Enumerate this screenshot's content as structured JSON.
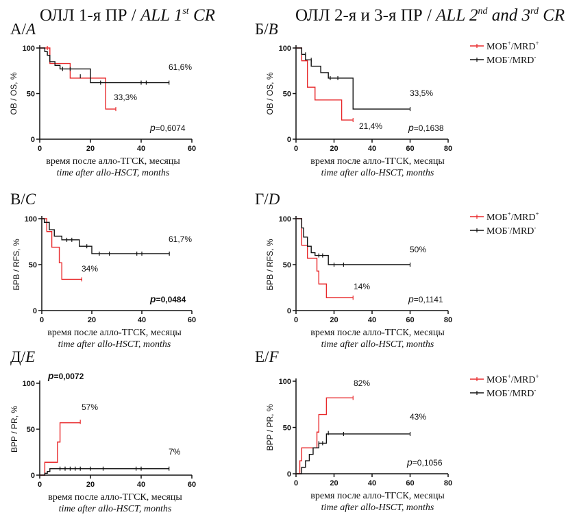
{
  "headings": {
    "left_main": "ОЛЛ 1-я ПР / ",
    "left_ital_pre": "ALL 1",
    "left_sup": "st",
    "left_ital_post": " CR",
    "right_main": "ОЛЛ 2-я и 3-я ПР / ",
    "right_ital_pre": "ALL 2",
    "right_sup1": "nd",
    "right_ital_mid": " and 3",
    "right_sup2": "rd",
    "right_ital_post": " CR"
  },
  "legend": {
    "red_label_pre": "МОБ",
    "red_label_sup": "+",
    "red_label_post": "/MRD",
    "red_label_sup2": "+",
    "black_label_pre": "МОБ",
    "black_label_sup": "-",
    "black_label_post": "/MRD",
    "black_label_sup2": "-"
  },
  "colors": {
    "red": "#e8292b",
    "black": "#111111"
  },
  "chart_data": [
    {
      "id": "A",
      "type": "line",
      "step": true,
      "panel_label_pre": "А/",
      "panel_label_it": "A",
      "ylabel": "ОВ / OS, %",
      "xlabel": "время после алло-ТГСК, месяцы",
      "xlabel2": "time after allo-HSCT, months",
      "xlim": [
        0,
        60
      ],
      "ylim": [
        0,
        100
      ],
      "xticks": [
        "0",
        "20",
        "40",
        "60"
      ],
      "yticks": [
        "0",
        "50",
        "100"
      ],
      "pvalue": "=0,6074",
      "p_bold": false,
      "annotations": [
        "61,6%",
        "33,3%"
      ],
      "series": [
        {
          "color": "red",
          "x": [
            0,
            3,
            4,
            12,
            26,
            30
          ],
          "y": [
            100,
            100,
            83,
            67,
            33,
            33
          ],
          "censor": [
            [
              3,
              100
            ],
            [
              30,
              33
            ]
          ]
        },
        {
          "color": "black",
          "x": [
            0,
            2,
            3,
            4,
            6,
            8,
            20,
            51
          ],
          "y": [
            100,
            96,
            92,
            85,
            81,
            77,
            62,
            62
          ],
          "censor": [
            [
              9,
              77
            ],
            [
              12,
              77
            ],
            [
              16,
              69
            ],
            [
              24,
              62
            ],
            [
              40,
              62
            ],
            [
              42,
              62
            ],
            [
              51,
              62
            ]
          ]
        }
      ]
    },
    {
      "id": "B",
      "type": "line",
      "step": true,
      "panel_label_pre": "Б/",
      "panel_label_it": "B",
      "ylabel": "ОВ / OS, %",
      "xlabel": "время после алло-ТГСК, месяцы",
      "xlabel2": "time after allo-HSCT, months",
      "xlim": [
        0,
        80
      ],
      "ylim": [
        0,
        100
      ],
      "xticks": [
        "0",
        "20",
        "40",
        "60",
        "80"
      ],
      "yticks": [
        "0",
        "50",
        "100"
      ],
      "pvalue": "=0,1638",
      "p_bold": false,
      "annotations": [
        "33,5%",
        "21,4%"
      ],
      "series": [
        {
          "color": "red",
          "x": [
            0,
            3,
            6,
            10,
            13,
            24,
            30
          ],
          "y": [
            100,
            86,
            57,
            43,
            43,
            21,
            21
          ],
          "censor": [
            [
              30,
              21
            ]
          ]
        },
        {
          "color": "black",
          "x": [
            0,
            3,
            5,
            8,
            13,
            17,
            30,
            60
          ],
          "y": [
            100,
            93,
            87,
            80,
            73,
            67,
            33,
            33
          ],
          "censor": [
            [
              5,
              93
            ],
            [
              8,
              87
            ],
            [
              18,
              67
            ],
            [
              22,
              67
            ],
            [
              60,
              33
            ]
          ]
        }
      ]
    },
    {
      "id": "C",
      "type": "line",
      "step": true,
      "panel_label_pre": "В/",
      "panel_label_it": "C",
      "ylabel": "БРВ / RFS, %",
      "xlabel": "время после алло-ТГСК, месяцы",
      "xlabel2": "time after allo-HSCT, months",
      "xlim": [
        0,
        60
      ],
      "ylim": [
        0,
        100
      ],
      "xticks": [
        "0",
        "20",
        "40",
        "60"
      ],
      "yticks": [
        "0",
        "50",
        "100"
      ],
      "pvalue": "=0,0484",
      "p_bold": true,
      "annotations": [
        "61,7%",
        "34%"
      ],
      "series": [
        {
          "color": "red",
          "x": [
            0,
            2,
            4,
            7,
            8,
            16
          ],
          "y": [
            100,
            86,
            69,
            52,
            34,
            34
          ],
          "censor": [
            [
              16,
              34
            ]
          ]
        },
        {
          "color": "black",
          "x": [
            0,
            1,
            3,
            5,
            8,
            15,
            20,
            51
          ],
          "y": [
            100,
            96,
            88,
            81,
            77,
            70,
            62,
            62
          ],
          "censor": [
            [
              10,
              77
            ],
            [
              12,
              77
            ],
            [
              18,
              70
            ],
            [
              23,
              62
            ],
            [
              27,
              62
            ],
            [
              38,
              62
            ],
            [
              40,
              62
            ],
            [
              51,
              62
            ]
          ]
        }
      ]
    },
    {
      "id": "D",
      "type": "line",
      "step": true,
      "panel_label_pre": "Г/",
      "panel_label_it": "D",
      "ylabel": "БРВ / RFS, %",
      "xlabel": "время после алло-ТГСК, месяцы",
      "xlabel2": "time after allo-HSCT, months",
      "xlim": [
        0,
        80
      ],
      "ylim": [
        0,
        100
      ],
      "xticks": [
        "0",
        "20",
        "40",
        "60",
        "80"
      ],
      "yticks": [
        "0",
        "50",
        "100"
      ],
      "pvalue": "=0,1141",
      "p_bold": false,
      "annotations": [
        "50%",
        "14%"
      ],
      "series": [
        {
          "color": "red",
          "x": [
            0,
            3,
            6,
            11,
            12,
            16,
            30
          ],
          "y": [
            100,
            71,
            57,
            43,
            29,
            14,
            14
          ],
          "censor": [
            [
              30,
              14
            ]
          ]
        },
        {
          "color": "black",
          "x": [
            0,
            3,
            4,
            6,
            8,
            10,
            17,
            60
          ],
          "y": [
            100,
            90,
            80,
            70,
            63,
            60,
            50,
            50
          ],
          "censor": [
            [
              12,
              60
            ],
            [
              14,
              60
            ],
            [
              20,
              50
            ],
            [
              25,
              50
            ],
            [
              60,
              50
            ]
          ]
        }
      ]
    },
    {
      "id": "E",
      "type": "line",
      "step": true,
      "panel_label_pre": "Д/",
      "panel_label_it": "E",
      "ylabel": "ВРР / PR, %",
      "xlabel": "время после алло-ТГСК, месяцы",
      "xlabel2": "time after allo-HSCT, months",
      "xlim": [
        0,
        60
      ],
      "ylim": [
        0,
        100
      ],
      "xticks": [
        "0",
        "20",
        "40",
        "60"
      ],
      "yticks": [
        "0",
        "50",
        "100"
      ],
      "pvalue": "=0,0072",
      "p_bold": true,
      "annotations": [
        "57%",
        "7%"
      ],
      "series": [
        {
          "color": "red",
          "x": [
            0,
            2,
            7,
            8,
            16
          ],
          "y": [
            0,
            14,
            36,
            57,
            57
          ],
          "censor": [
            [
              16,
              58
            ]
          ]
        },
        {
          "color": "black",
          "x": [
            0,
            2,
            3,
            4,
            51
          ],
          "y": [
            0,
            2,
            4,
            7,
            7
          ],
          "censor": [
            [
              8,
              7
            ],
            [
              10,
              7
            ],
            [
              12,
              7
            ],
            [
              14,
              7
            ],
            [
              16,
              7
            ],
            [
              20,
              7
            ],
            [
              25,
              7
            ],
            [
              38,
              7
            ],
            [
              40,
              7
            ],
            [
              51,
              7
            ]
          ]
        }
      ]
    },
    {
      "id": "F",
      "type": "line",
      "step": true,
      "panel_label_pre": "Е/",
      "panel_label_it": "F",
      "ylabel": "ВРР / PR, %",
      "xlabel": "время после алло-ТГСК, месяцы",
      "xlabel2": "time after allo-HSCT, months",
      "xlim": [
        0,
        80
      ],
      "ylim": [
        0,
        100
      ],
      "xticks": [
        "0",
        "20",
        "40",
        "60",
        "80"
      ],
      "yticks": [
        "0",
        "50",
        "100"
      ],
      "pvalue": "=0,1056",
      "p_bold": false,
      "annotations": [
        "82%",
        "43%"
      ],
      "series": [
        {
          "color": "red",
          "x": [
            0,
            2,
            3,
            10,
            11,
            12,
            16,
            30
          ],
          "y": [
            0,
            14,
            28,
            28,
            45,
            64,
            82,
            82
          ],
          "censor": [
            [
              30,
              82
            ]
          ]
        },
        {
          "color": "black",
          "x": [
            0,
            3,
            5,
            7,
            9,
            12,
            16,
            60
          ],
          "y": [
            0,
            7,
            14,
            21,
            28,
            33,
            43,
            43
          ],
          "censor": [
            [
              12,
              33
            ],
            [
              14,
              33
            ],
            [
              17,
              44
            ],
            [
              25,
              43
            ],
            [
              60,
              43
            ]
          ]
        }
      ]
    }
  ]
}
